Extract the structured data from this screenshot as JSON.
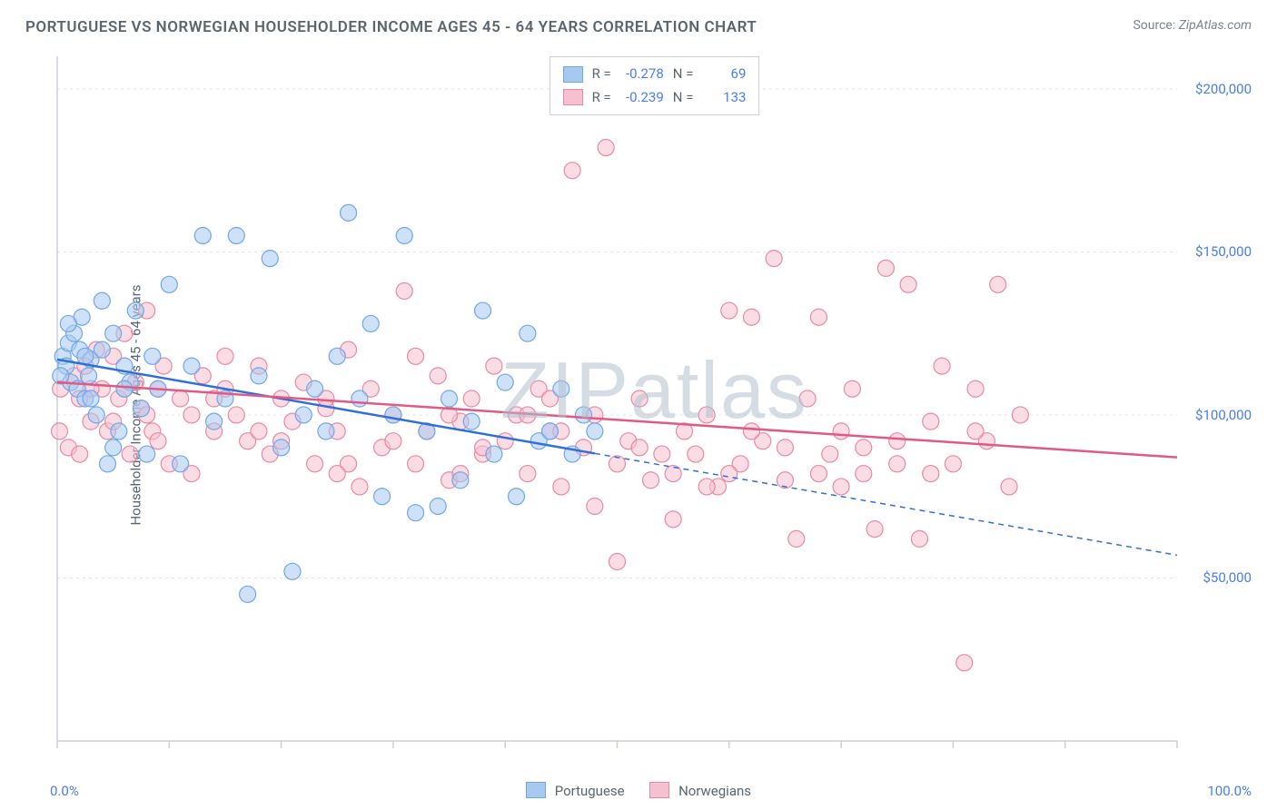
{
  "title": "PORTUGUESE VS NORWEGIAN HOUSEHOLDER INCOME AGES 45 - 64 YEARS CORRELATION CHART",
  "source_label": "Source:",
  "source_value": "ZipAtlas.com",
  "watermark": "ZIPatlas",
  "ylabel": "Householder Income Ages 45 - 64 years",
  "xaxis": {
    "min_label": "0.0%",
    "max_label": "100.0%",
    "min": 0,
    "max": 100,
    "tick_step": 10
  },
  "yaxis": {
    "min": 0,
    "max": 210000,
    "ticks": [
      50000,
      100000,
      150000,
      200000
    ],
    "tick_labels": [
      "$50,000",
      "$100,000",
      "$150,000",
      "$200,000"
    ]
  },
  "grid_color": "#e1e5ea",
  "axis_color": "#c9d0d8",
  "background_color": "#ffffff",
  "series": [
    {
      "name": "Portuguese",
      "fill": "#a7c9f0",
      "stroke": "#6fa8e8",
      "trend_color": "#2f6fd6",
      "R": "-0.278",
      "N": "69",
      "trend": {
        "y_at_x0": 117000,
        "y_at_x100": 57000,
        "solid_until_x": 48
      },
      "marker_radius": 9,
      "points": [
        [
          0.5,
          118000
        ],
        [
          0.8,
          115000
        ],
        [
          1.0,
          122000
        ],
        [
          1.2,
          110000
        ],
        [
          1.5,
          125000
        ],
        [
          1.8,
          108000
        ],
        [
          2.0,
          120000
        ],
        [
          2.2,
          130000
        ],
        [
          2.5,
          105000
        ],
        [
          2.8,
          112000
        ],
        [
          3.0,
          117000
        ],
        [
          3.5,
          100000
        ],
        [
          4.0,
          135000
        ],
        [
          4.5,
          85000
        ],
        [
          5.0,
          125000
        ],
        [
          5.5,
          95000
        ],
        [
          6.0,
          115000
        ],
        [
          6.5,
          110000
        ],
        [
          7.0,
          132000
        ],
        [
          7.5,
          102000
        ],
        [
          8.0,
          88000
        ],
        [
          8.5,
          118000
        ],
        [
          9.0,
          108000
        ],
        [
          10.0,
          140000
        ],
        [
          11.0,
          85000
        ],
        [
          12.0,
          115000
        ],
        [
          13.0,
          155000
        ],
        [
          14.0,
          98000
        ],
        [
          15.0,
          105000
        ],
        [
          16.0,
          155000
        ],
        [
          17.0,
          45000
        ],
        [
          18.0,
          112000
        ],
        [
          19.0,
          148000
        ],
        [
          20.0,
          90000
        ],
        [
          21.0,
          52000
        ],
        [
          22.0,
          100000
        ],
        [
          23.0,
          108000
        ],
        [
          24.0,
          95000
        ],
        [
          25.0,
          118000
        ],
        [
          26.0,
          162000
        ],
        [
          27.0,
          105000
        ],
        [
          28.0,
          128000
        ],
        [
          29.0,
          75000
        ],
        [
          30.0,
          100000
        ],
        [
          31.0,
          155000
        ],
        [
          32.0,
          70000
        ],
        [
          33.0,
          95000
        ],
        [
          34.0,
          72000
        ],
        [
          35.0,
          105000
        ],
        [
          36.0,
          80000
        ],
        [
          37.0,
          98000
        ],
        [
          38.0,
          132000
        ],
        [
          39.0,
          88000
        ],
        [
          40.0,
          110000
        ],
        [
          41.0,
          75000
        ],
        [
          42.0,
          125000
        ],
        [
          43.0,
          92000
        ],
        [
          44.0,
          95000
        ],
        [
          45.0,
          108000
        ],
        [
          46.0,
          88000
        ],
        [
          47.0,
          100000
        ],
        [
          48.0,
          95000
        ],
        [
          1.0,
          128000
        ],
        [
          2.5,
          118000
        ],
        [
          3.0,
          105000
        ],
        [
          4.0,
          120000
        ],
        [
          5.0,
          90000
        ],
        [
          6.0,
          108000
        ],
        [
          0.3,
          112000
        ]
      ]
    },
    {
      "name": "Norwegians",
      "fill": "#f5c0cf",
      "stroke": "#e88aa4",
      "trend_color": "#e05a84",
      "R": "-0.239",
      "N": "133",
      "trend": {
        "y_at_x0": 110000,
        "y_at_x100": 87000,
        "solid_until_x": 100
      },
      "marker_radius": 9,
      "points": [
        [
          0.3,
          108000
        ],
        [
          1.0,
          90000
        ],
        [
          1.5,
          112000
        ],
        [
          2.0,
          105000
        ],
        [
          2.5,
          115000
        ],
        [
          3.0,
          98000
        ],
        [
          3.5,
          120000
        ],
        [
          4.0,
          108000
        ],
        [
          4.5,
          95000
        ],
        [
          5.0,
          118000
        ],
        [
          5.5,
          105000
        ],
        [
          6.0,
          125000
        ],
        [
          6.5,
          88000
        ],
        [
          7.0,
          110000
        ],
        [
          7.5,
          102000
        ],
        [
          8.0,
          132000
        ],
        [
          8.5,
          95000
        ],
        [
          9.0,
          108000
        ],
        [
          9.5,
          115000
        ],
        [
          10.0,
          85000
        ],
        [
          11.0,
          105000
        ],
        [
          12.0,
          82000
        ],
        [
          13.0,
          112000
        ],
        [
          14.0,
          95000
        ],
        [
          15.0,
          108000
        ],
        [
          16.0,
          100000
        ],
        [
          17.0,
          92000
        ],
        [
          18.0,
          115000
        ],
        [
          19.0,
          88000
        ],
        [
          20.0,
          105000
        ],
        [
          21.0,
          98000
        ],
        [
          22.0,
          110000
        ],
        [
          23.0,
          85000
        ],
        [
          24.0,
          102000
        ],
        [
          25.0,
          95000
        ],
        [
          26.0,
          120000
        ],
        [
          27.0,
          78000
        ],
        [
          28.0,
          108000
        ],
        [
          29.0,
          90000
        ],
        [
          30.0,
          100000
        ],
        [
          31.0,
          138000
        ],
        [
          32.0,
          85000
        ],
        [
          33.0,
          95000
        ],
        [
          34.0,
          112000
        ],
        [
          35.0,
          80000
        ],
        [
          36.0,
          98000
        ],
        [
          37.0,
          105000
        ],
        [
          38.0,
          88000
        ],
        [
          39.0,
          115000
        ],
        [
          40.0,
          92000
        ],
        [
          41.0,
          100000
        ],
        [
          42.0,
          82000
        ],
        [
          43.0,
          108000
        ],
        [
          44.0,
          95000
        ],
        [
          45.0,
          78000
        ],
        [
          46.0,
          175000
        ],
        [
          47.0,
          90000
        ],
        [
          48.0,
          100000
        ],
        [
          49.0,
          182000
        ],
        [
          50.0,
          85000
        ],
        [
          51.0,
          92000
        ],
        [
          52.0,
          105000
        ],
        [
          53.0,
          80000
        ],
        [
          54.0,
          88000
        ],
        [
          55.0,
          82000
        ],
        [
          56.0,
          95000
        ],
        [
          57.0,
          88000
        ],
        [
          58.0,
          100000
        ],
        [
          59.0,
          78000
        ],
        [
          60.0,
          132000
        ],
        [
          61.0,
          85000
        ],
        [
          62.0,
          130000
        ],
        [
          63.0,
          92000
        ],
        [
          64.0,
          148000
        ],
        [
          65.0,
          80000
        ],
        [
          66.0,
          62000
        ],
        [
          67.0,
          105000
        ],
        [
          68.0,
          130000
        ],
        [
          69.0,
          88000
        ],
        [
          70.0,
          95000
        ],
        [
          71.0,
          108000
        ],
        [
          72.0,
          82000
        ],
        [
          73.0,
          65000
        ],
        [
          74.0,
          145000
        ],
        [
          75.0,
          92000
        ],
        [
          76.0,
          140000
        ],
        [
          77.0,
          62000
        ],
        [
          78.0,
          98000
        ],
        [
          79.0,
          115000
        ],
        [
          80.0,
          85000
        ],
        [
          81.0,
          24000
        ],
        [
          82.0,
          108000
        ],
        [
          83.0,
          92000
        ],
        [
          84.0,
          140000
        ],
        [
          85.0,
          78000
        ],
        [
          86.0,
          100000
        ],
        [
          50.0,
          55000
        ],
        [
          44.0,
          105000
        ],
        [
          38.0,
          90000
        ],
        [
          32.0,
          118000
        ],
        [
          26.0,
          85000
        ],
        [
          20.0,
          92000
        ],
        [
          14.0,
          105000
        ],
        [
          8.0,
          100000
        ],
        [
          2.0,
          88000
        ],
        [
          55.0,
          68000
        ],
        [
          60.0,
          82000
        ],
        [
          65.0,
          90000
        ],
        [
          70.0,
          78000
        ],
        [
          75.0,
          85000
        ],
        [
          45.0,
          95000
        ],
        [
          35.0,
          100000
        ],
        [
          25.0,
          82000
        ],
        [
          15.0,
          118000
        ],
        [
          5.0,
          98000
        ],
        [
          48.0,
          72000
        ],
        [
          52.0,
          90000
        ],
        [
          58.0,
          78000
        ],
        [
          62.0,
          95000
        ],
        [
          68.0,
          82000
        ],
        [
          72.0,
          90000
        ],
        [
          78.0,
          82000
        ],
        [
          82.0,
          95000
        ],
        [
          42.0,
          100000
        ],
        [
          36.0,
          82000
        ],
        [
          30.0,
          92000
        ],
        [
          24.0,
          105000
        ],
        [
          18.0,
          95000
        ],
        [
          12.0,
          100000
        ],
        [
          6.0,
          108000
        ],
        [
          0.2,
          95000
        ],
        [
          3.0,
          108000
        ],
        [
          9.0,
          92000
        ]
      ]
    }
  ],
  "stats_box": {
    "R_label": "R =",
    "N_label": "N ="
  },
  "legend": {
    "label1": "Portuguese",
    "label2": "Norwegians"
  }
}
